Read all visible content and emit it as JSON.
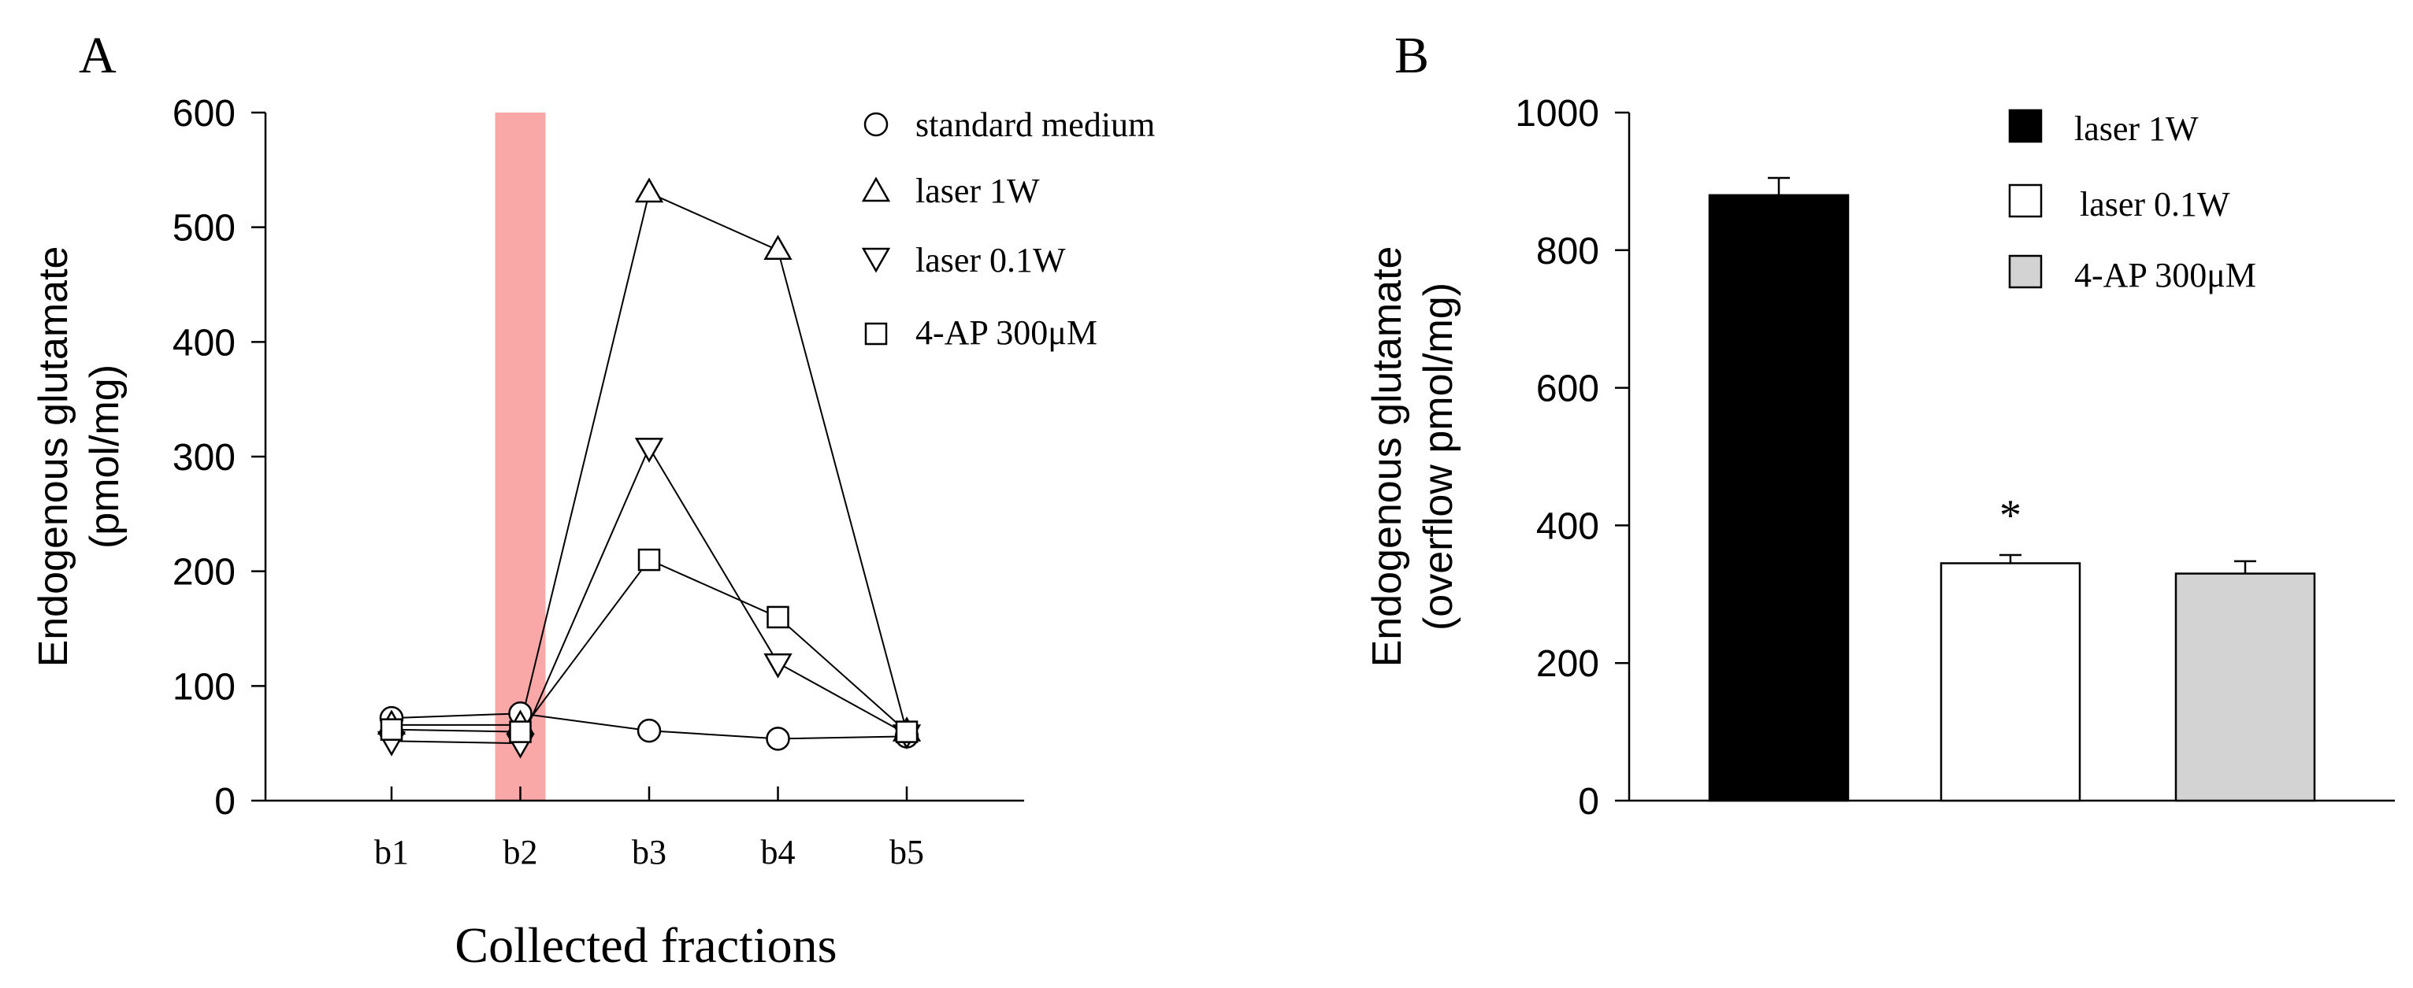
{
  "chart_data": [
    {
      "panel_label": "A",
      "type": "line",
      "categories": [
        "b1",
        "b2",
        "b3",
        "b4",
        "b5"
      ],
      "ylabel": [
        "Endogenous glutamate",
        "(pmol/mg)"
      ],
      "xlabel": "Collected fractions",
      "ylim": [
        0,
        600
      ],
      "yticks": [
        0,
        100,
        200,
        300,
        400,
        500,
        600
      ],
      "highlight": {
        "category": "b2",
        "color": "#f9a7a7"
      },
      "series": [
        {
          "name": "standard medium",
          "marker": "circle",
          "values": [
            72,
            76,
            61,
            54,
            56
          ]
        },
        {
          "name": "laser 1W",
          "marker": "triangle-up",
          "values": [
            66,
            66,
            530,
            480,
            60
          ]
        },
        {
          "name": "laser 0.1W",
          "marker": "triangle-down",
          "values": [
            52,
            50,
            308,
            120,
            58
          ]
        },
        {
          "name": "4-AP 300μM",
          "marker": "square",
          "values": [
            62,
            60,
            210,
            160,
            60
          ]
        }
      ]
    },
    {
      "panel_label": "B",
      "type": "bar",
      "ylabel": [
        "Endogenous glutamate",
        "(overflow pmol/mg)"
      ],
      "ylim": [
        0,
        1000
      ],
      "yticks": [
        0,
        200,
        400,
        600,
        800,
        1000
      ],
      "bars": [
        {
          "name": "laser 1W",
          "value": 880,
          "error": 25,
          "color": "#000000",
          "annotation": ""
        },
        {
          "name": "laser 0.1W",
          "value": 345,
          "error": 12,
          "color": "#ffffff",
          "annotation": "*"
        },
        {
          "name": "4-AP 300μM",
          "value": 330,
          "error": 18,
          "color": "#d3d3d3",
          "annotation": ""
        }
      ]
    }
  ]
}
